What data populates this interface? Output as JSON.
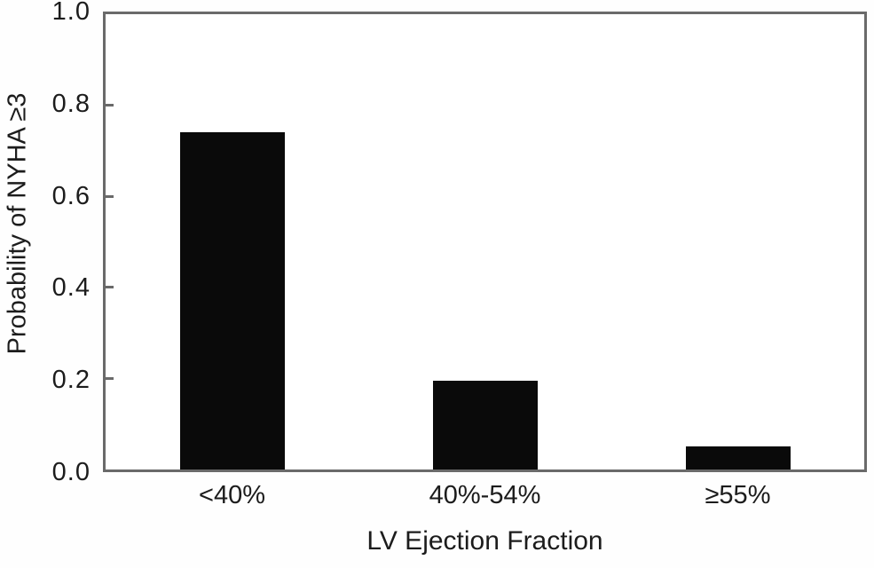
{
  "chart_data": {
    "type": "bar",
    "title": "",
    "xlabel": "LV Ejection Fraction",
    "ylabel": "Probability of NYHA ≥3",
    "categories": [
      "<40%",
      "40%-54%",
      "≥55%"
    ],
    "values": [
      0.74,
      0.195,
      0.05
    ],
    "ylim": [
      0,
      1.0
    ],
    "ytick_labels": [
      "1.0",
      "0.8",
      "0.6",
      "0.4",
      "0.2",
      "0.0"
    ],
    "ytick_values": [
      1.0,
      0.8,
      0.6,
      0.4,
      0.2,
      0.0
    ],
    "inner_tick_values": [
      0.8,
      0.6,
      0.4,
      0.2
    ],
    "grid": false,
    "legend": null,
    "bar_color": "#0a0a0a",
    "frame_color": "#6a6a6a",
    "text_color": "#1c1c1c",
    "background_color": "#ffffff"
  }
}
